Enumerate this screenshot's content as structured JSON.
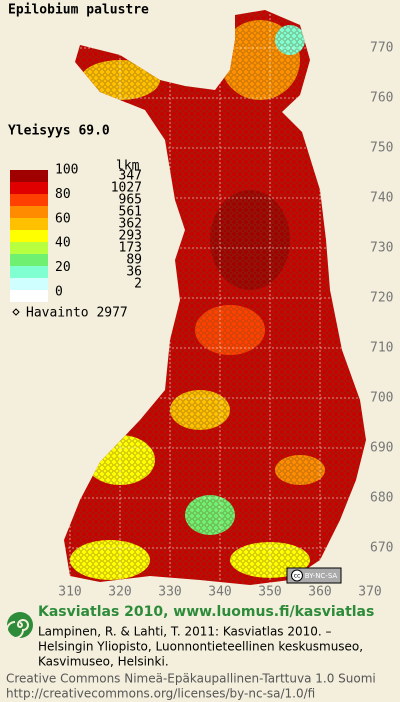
{
  "title": "Epilobium palustre",
  "frequency": "Yleisyys  69.0",
  "legend": {
    "scale": [
      100,
      80,
      60,
      40,
      20,
      0
    ],
    "count_header": "lkm",
    "counts": [
      347,
      1027,
      965,
      561,
      362,
      293,
      173,
      89,
      36,
      2
    ],
    "colors": [
      "#a00000",
      "#e00000",
      "#ff4000",
      "#ff8c00",
      "#ffc000",
      "#ffff00",
      "#b8ff40",
      "#70f070",
      "#80ffd0",
      "#d0ffff"
    ],
    "observations": "Havainto 2977"
  },
  "y_labels": [
    770,
    760,
    750,
    740,
    730,
    720,
    710,
    700,
    690,
    680,
    670
  ],
  "x_labels": [
    310,
    320,
    330,
    340,
    350,
    360,
    370
  ],
  "license_badge": "BY-NC-SA",
  "footer": {
    "heading": "Kasviatlas 2010, www.luomus.fi/kasviatlas",
    "citation": [
      "Lampinen, R. & Lahti, T. 2011: Kasviatlas 2010. –",
      "Helsingin Yliopisto, Luonnontieteellinen keskusmuseo,",
      "Kasvimuseo, Helsinki."
    ],
    "license": [
      "Creative Commons Nimeä-Epäkaupallinen-Tarttuva 1.0 Suomi",
      "http://creativecommons.org/licenses/by-nc-sa/1.0/fi"
    ]
  }
}
